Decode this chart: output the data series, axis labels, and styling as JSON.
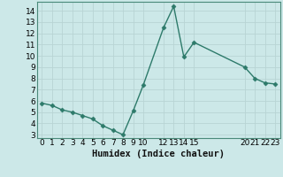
{
  "x": [
    0,
    1,
    2,
    3,
    4,
    5,
    6,
    7,
    8,
    9,
    10,
    12,
    13,
    14,
    15,
    20,
    21,
    22,
    23
  ],
  "y": [
    5.8,
    5.6,
    5.2,
    5.0,
    4.7,
    4.4,
    3.8,
    3.4,
    3.0,
    5.1,
    7.4,
    12.5,
    14.4,
    9.9,
    11.2,
    9.0,
    8.0,
    7.6,
    7.5
  ],
  "line_color": "#2d7a6a",
  "marker": "D",
  "marker_size": 2.5,
  "bg_color": "#cce8e8",
  "grid_major_color": "#b8d4d4",
  "grid_minor_color": "#c8dede",
  "xlabel": "Humidex (Indice chaleur)",
  "xlim": [
    -0.5,
    23.5
  ],
  "ylim": [
    2.7,
    14.8
  ],
  "yticks": [
    3,
    4,
    5,
    6,
    7,
    8,
    9,
    10,
    11,
    12,
    13,
    14
  ],
  "xticks": [
    0,
    1,
    2,
    3,
    4,
    5,
    6,
    7,
    8,
    9,
    10,
    12,
    13,
    14,
    15,
    20,
    21,
    22,
    23
  ],
  "tick_label_fontsize": 6.5,
  "xlabel_fontsize": 7.5,
  "spine_color": "#4a8a7a"
}
